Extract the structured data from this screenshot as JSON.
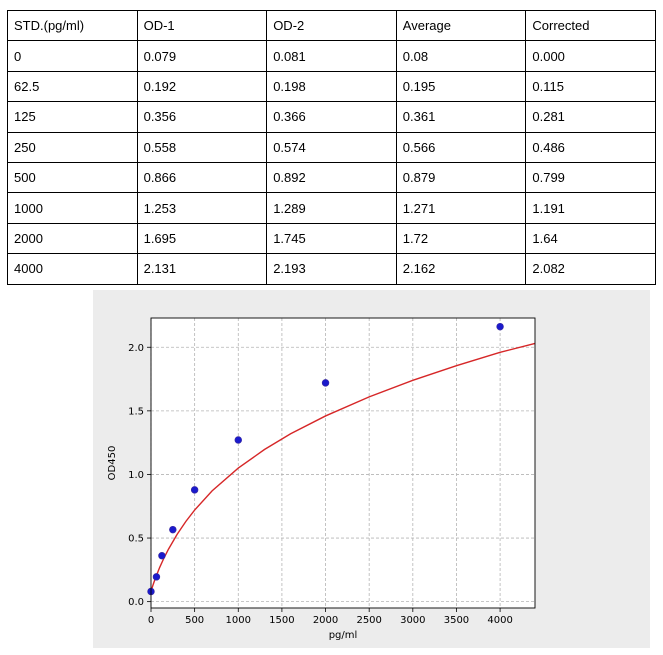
{
  "table": {
    "headers": [
      "STD.(pg/ml)",
      "OD-1",
      "OD-2",
      "Average",
      "Corrected"
    ],
    "rows": [
      [
        "0",
        "0.079",
        "0.081",
        "0.08",
        "0.000"
      ],
      [
        "62.5",
        "0.192",
        "0.198",
        "0.195",
        "0.115"
      ],
      [
        "125",
        "0.356",
        "0.366",
        "0.361",
        "0.281"
      ],
      [
        "250",
        "0.558",
        "0.574",
        "0.566",
        "0.486"
      ],
      [
        "500",
        "0.866",
        "0.892",
        "0.879",
        "0.799"
      ],
      [
        "1000",
        "1.253",
        "1.289",
        "1.271",
        "1.191"
      ],
      [
        "2000",
        "1.695",
        "1.745",
        "1.72",
        "1.64"
      ],
      [
        "4000",
        "2.131",
        "2.193",
        "2.162",
        "2.082"
      ]
    ]
  },
  "chart_data": {
    "type": "scatter",
    "title": "",
    "xlabel": "pg/ml",
    "ylabel": "OD450",
    "xlim": [
      0,
      4400
    ],
    "ylim": [
      -0.05,
      2.23
    ],
    "xticks": [
      0,
      500,
      1000,
      1500,
      2000,
      2500,
      3000,
      3500,
      4000
    ],
    "yticks": [
      0.0,
      0.5,
      1.0,
      1.5,
      2.0
    ],
    "ytick_labels": [
      "0.0",
      "0.5",
      "1.0",
      "1.5",
      "2.0"
    ],
    "grid": true,
    "series": [
      {
        "marker": "point",
        "color": "#1a1acc",
        "x": [
          0,
          62.5,
          125,
          250,
          500,
          1000,
          2000,
          4000
        ],
        "y": [
          0.08,
          0.195,
          0.361,
          0.566,
          0.879,
          1.271,
          1.72,
          2.162
        ]
      },
      {
        "marker": "line",
        "color": "#d62728",
        "x": [
          0,
          25,
          50,
          100,
          150,
          200,
          300,
          400,
          500,
          700,
          1000,
          1300,
          1600,
          2000,
          2500,
          3000,
          3500,
          4000,
          4400
        ],
        "y": [
          0.08,
          0.135,
          0.184,
          0.27,
          0.345,
          0.412,
          0.53,
          0.631,
          0.72,
          0.871,
          1.05,
          1.196,
          1.32,
          1.46,
          1.61,
          1.74,
          1.855,
          1.96,
          2.03
        ]
      }
    ]
  }
}
